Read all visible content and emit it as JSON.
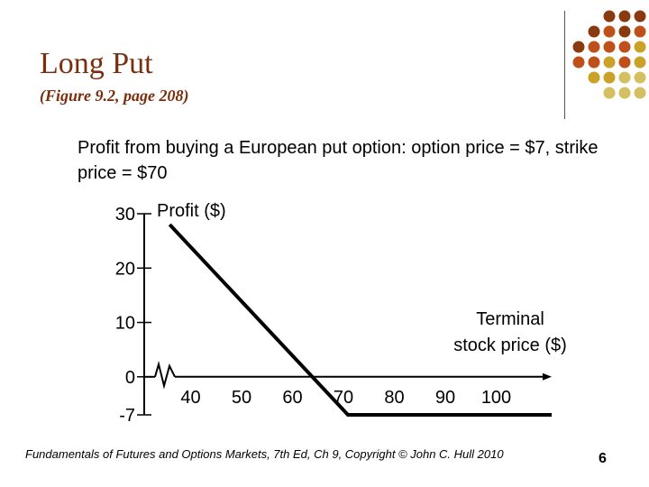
{
  "slide": {
    "title": "Long Put",
    "subtitle": "(Figure 9.2, page 208)",
    "description": "Profit from buying a European put option: option price = $7, strike price = $70",
    "footer": "Fundamentals of Futures and Options Markets, 7th Ed, Ch 9, Copyright © John C. Hull 2010",
    "page_number": "6",
    "dot_colors": [
      "#8b3a0f",
      "#c0501a",
      "#c9a227",
      "#d4c060"
    ]
  },
  "chart_data": {
    "type": "line",
    "ylabel": "Profit ($)",
    "xlabel": "Terminal stock price ($)",
    "x_ticks": [
      "40",
      "50",
      "60",
      "70",
      "80",
      "90",
      "100"
    ],
    "y_ticks": [
      "30",
      "20",
      "10",
      "0",
      "-7"
    ],
    "xlim": [
      30,
      110
    ],
    "ylim": [
      -7,
      30
    ],
    "axis_break": true,
    "series": [
      {
        "x": [
          35,
          70,
          110
        ],
        "y": [
          28,
          -7,
          -7
        ]
      }
    ]
  }
}
